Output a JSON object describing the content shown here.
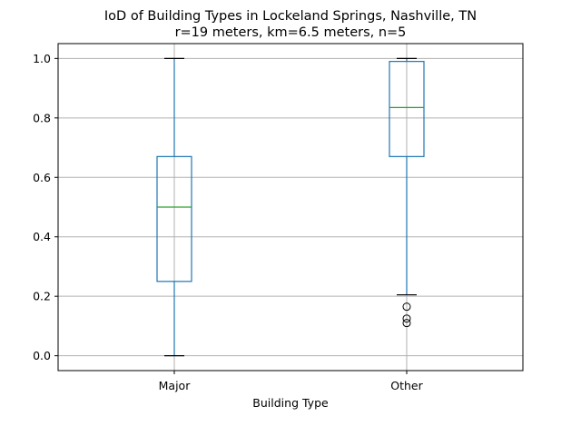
{
  "chart_data": {
    "type": "box",
    "title_lines": [
      "IoD of Building Types in Lockeland Springs, Nashville, TN",
      "r=19 meters, km=6.5 meters, n=5"
    ],
    "xlabel": "Building Type",
    "ylabel": "",
    "ylim": [
      -0.05,
      1.05
    ],
    "yticks": [
      0.0,
      0.2,
      0.4,
      0.6,
      0.8,
      1.0
    ],
    "ytick_labels": [
      "0.0",
      "0.2",
      "0.4",
      "0.6",
      "0.8",
      "1.0"
    ],
    "grid": true,
    "categories": [
      "Major",
      "Other"
    ],
    "boxes": [
      {
        "name": "Major",
        "whisker_low": 0.0,
        "q1": 0.25,
        "median": 0.5,
        "q3": 0.67,
        "whisker_high": 1.0,
        "outliers": []
      },
      {
        "name": "Other",
        "whisker_low": 0.205,
        "q1": 0.67,
        "median": 0.835,
        "q3": 0.99,
        "whisker_high": 1.0,
        "outliers": [
          0.165,
          0.125,
          0.11
        ]
      }
    ],
    "colors": {
      "box": "#1f77b4",
      "median": "#2ca02c",
      "grid": "#b0b0b0",
      "cap": "#000000"
    }
  }
}
